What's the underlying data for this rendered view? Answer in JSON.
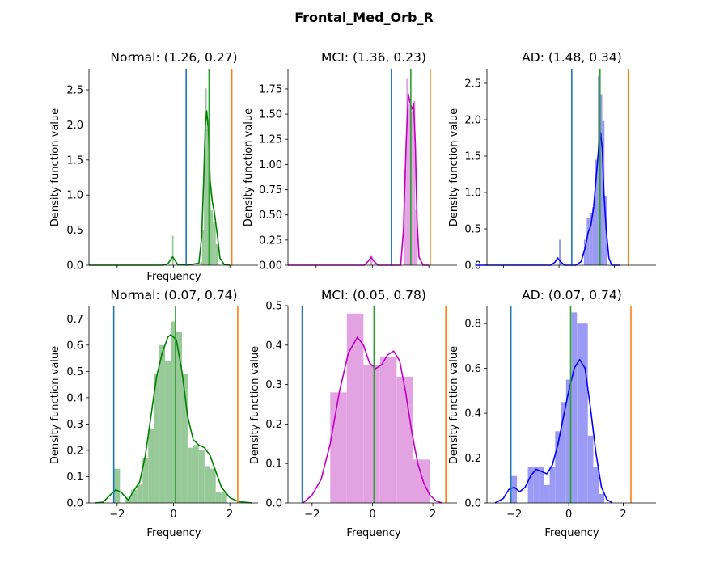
{
  "figure": {
    "title": "Frontal_Med_Orb_R"
  },
  "chart_data": [
    {
      "type": "histogram-kde",
      "title": "Normal: (1.26, 0.27)",
      "xlabel": "Frequency",
      "ylabel": "Density function value",
      "xlim": [
        -3.0,
        3.0
      ],
      "ylim": [
        0,
        2.8
      ],
      "yticks": [
        0.0,
        0.5,
        1.0,
        1.5,
        2.0,
        2.5
      ],
      "ytick_labels": [
        "0.0",
        "0.5",
        "1.0",
        "1.5",
        "2.0",
        "2.5"
      ],
      "xticks": [
        -2,
        0,
        2
      ],
      "xtick_labels": [],
      "color": "#008000",
      "fill_color": "#98c998",
      "bins": [
        [
          -0.05,
          0.0,
          0.42
        ],
        [
          0.95,
          1.02,
          0.05
        ],
        [
          1.02,
          1.08,
          0.5
        ],
        [
          1.08,
          1.12,
          1.7
        ],
        [
          1.12,
          1.18,
          2.52
        ],
        [
          1.18,
          1.24,
          1.95
        ],
        [
          1.24,
          1.32,
          1.15
        ],
        [
          1.32,
          1.4,
          0.78
        ],
        [
          1.4,
          1.5,
          0.62
        ],
        [
          1.5,
          1.6,
          0.3
        ]
      ],
      "kde": [
        [
          -3.0,
          0.0
        ],
        [
          -0.4,
          0.0
        ],
        [
          -0.2,
          0.02
        ],
        [
          -0.1,
          0.08
        ],
        [
          -0.03,
          0.12
        ],
        [
          0.05,
          0.07
        ],
        [
          0.15,
          0.01
        ],
        [
          0.5,
          0.0
        ],
        [
          0.9,
          0.03
        ],
        [
          1.0,
          0.4
        ],
        [
          1.07,
          1.2
        ],
        [
          1.13,
          2.0
        ],
        [
          1.18,
          2.2
        ],
        [
          1.24,
          1.9
        ],
        [
          1.3,
          1.2
        ],
        [
          1.38,
          0.9
        ],
        [
          1.45,
          0.75
        ],
        [
          1.55,
          0.45
        ],
        [
          1.65,
          0.1
        ],
        [
          1.8,
          0.01
        ],
        [
          2.0,
          0.0
        ]
      ],
      "vlines": [
        {
          "x": 0.45,
          "color": "#1f77b4"
        },
        {
          "x": 1.26,
          "color": "#2ca02c"
        },
        {
          "x": 2.07,
          "color": "#ff7f0e"
        }
      ]
    },
    {
      "type": "histogram-kde",
      "title": "MCI: (1.36, 0.23)",
      "xlabel": "",
      "ylabel": "Density function value",
      "xlim": [
        -3.0,
        3.0
      ],
      "ylim": [
        0,
        1.95
      ],
      "yticks": [
        0.0,
        0.25,
        0.5,
        0.75,
        1.0,
        1.25,
        1.5,
        1.75
      ],
      "ytick_labels": [
        "0.00",
        "0.25",
        "0.50",
        "0.75",
        "1.00",
        "1.25",
        "1.50",
        "1.75"
      ],
      "xticks": [
        -2,
        0,
        2
      ],
      "xtick_labels": [],
      "color": "#bf00bf",
      "fill_color": "#e3a3e3",
      "bins": [
        [
          -0.1,
          0.0,
          0.1
        ],
        [
          1.1,
          1.2,
          0.95
        ],
        [
          1.2,
          1.28,
          1.85
        ],
        [
          1.28,
          1.36,
          1.6
        ],
        [
          1.36,
          1.44,
          1.53
        ],
        [
          1.44,
          1.52,
          1.63
        ],
        [
          1.52,
          1.6,
          0.55
        ]
      ],
      "kde": [
        [
          -3.0,
          0.0
        ],
        [
          -0.3,
          0.0
        ],
        [
          -0.15,
          0.04
        ],
        [
          -0.05,
          0.08
        ],
        [
          0.05,
          0.04
        ],
        [
          0.2,
          0.0
        ],
        [
          1.0,
          0.0
        ],
        [
          1.1,
          0.35
        ],
        [
          1.2,
          1.25
        ],
        [
          1.27,
          1.7
        ],
        [
          1.32,
          1.63
        ],
        [
          1.4,
          1.55
        ],
        [
          1.46,
          1.6
        ],
        [
          1.52,
          1.2
        ],
        [
          1.58,
          0.45
        ],
        [
          1.65,
          0.08
        ],
        [
          1.8,
          0.0
        ],
        [
          2.0,
          0.0
        ]
      ],
      "vlines": [
        {
          "x": 0.67,
          "color": "#1f77b4"
        },
        {
          "x": 1.36,
          "color": "#2ca02c"
        },
        {
          "x": 2.05,
          "color": "#ff7f0e"
        }
      ]
    },
    {
      "type": "histogram-kde",
      "title": "AD: (1.48, 0.34)",
      "xlabel": "",
      "ylabel": "Density function value",
      "xlim": [
        -2.6,
        3.5
      ],
      "ylim": [
        0,
        2.7
      ],
      "yticks": [
        0.0,
        0.5,
        1.0,
        1.5,
        2.0,
        2.5
      ],
      "ytick_labels": [
        "0.0",
        "0.5",
        "1.0",
        "1.5",
        "2.0",
        "2.5"
      ],
      "xticks": [
        -2,
        0,
        2
      ],
      "xtick_labels": [],
      "color": "#0000ff",
      "fill_color": "#9b9bf5",
      "bins": [
        [
          0.0,
          0.07,
          0.35
        ],
        [
          0.9,
          1.0,
          0.35
        ],
        [
          1.0,
          1.1,
          0.65
        ],
        [
          1.1,
          1.2,
          0.72
        ],
        [
          1.2,
          1.3,
          0.8
        ],
        [
          1.3,
          1.4,
          1.45
        ],
        [
          1.4,
          1.48,
          2.6
        ],
        [
          1.48,
          1.56,
          2.35
        ],
        [
          1.56,
          1.64,
          1.98
        ],
        [
          1.64,
          1.72,
          0.95
        ]
      ],
      "kde": [
        [
          -3.0,
          0.0
        ],
        [
          -0.3,
          0.0
        ],
        [
          -0.15,
          0.04
        ],
        [
          -0.05,
          0.1
        ],
        [
          0.05,
          0.05
        ],
        [
          0.2,
          0.0
        ],
        [
          0.6,
          0.0
        ],
        [
          0.8,
          0.05
        ],
        [
          0.95,
          0.25
        ],
        [
          1.05,
          0.45
        ],
        [
          1.15,
          0.55
        ],
        [
          1.25,
          0.8
        ],
        [
          1.35,
          1.25
        ],
        [
          1.45,
          1.7
        ],
        [
          1.5,
          1.82
        ],
        [
          1.56,
          1.6
        ],
        [
          1.62,
          1.0
        ],
        [
          1.7,
          0.5
        ],
        [
          1.8,
          0.1
        ],
        [
          1.9,
          0.0
        ],
        [
          2.2,
          0.0
        ]
      ],
      "vlines": [
        {
          "x": 0.46,
          "color": "#1f77b4"
        },
        {
          "x": 1.48,
          "color": "#2ca02c"
        },
        {
          "x": 2.5,
          "color": "#ff7f0e"
        }
      ]
    },
    {
      "type": "histogram-kde",
      "title": "Normal: (0.07, 0.74)",
      "xlabel": "Frequency",
      "ylabel": "Density function value",
      "xlim": [
        -3.0,
        3.0
      ],
      "ylim": [
        0,
        0.75
      ],
      "yticks": [
        0.0,
        0.1,
        0.2,
        0.3,
        0.4,
        0.5,
        0.6,
        0.7
      ],
      "ytick_labels": [
        "0.0",
        "0.1",
        "0.2",
        "0.3",
        "0.4",
        "0.5",
        "0.6",
        "0.7"
      ],
      "xticks": [
        -2,
        0,
        2
      ],
      "xtick_labels": [
        "−2",
        "0",
        "2"
      ],
      "color": "#008000",
      "fill_color": "#98c998",
      "bins": [
        [
          -2.1,
          -1.9,
          0.13
        ],
        [
          -1.7,
          -1.5,
          0.02
        ],
        [
          -1.5,
          -1.3,
          0.05
        ],
        [
          -1.3,
          -1.1,
          0.07
        ],
        [
          -1.1,
          -0.9,
          0.17
        ],
        [
          -0.9,
          -0.7,
          0.28
        ],
        [
          -0.7,
          -0.5,
          0.49
        ],
        [
          -0.5,
          -0.3,
          0.6
        ],
        [
          -0.3,
          -0.1,
          0.54
        ],
        [
          -0.1,
          0.1,
          0.69
        ],
        [
          0.1,
          0.3,
          0.65
        ],
        [
          0.3,
          0.5,
          0.49
        ],
        [
          0.5,
          0.7,
          0.21
        ],
        [
          0.7,
          0.9,
          0.22
        ],
        [
          0.9,
          1.1,
          0.2
        ],
        [
          1.1,
          1.3,
          0.14
        ],
        [
          1.3,
          1.5,
          0.13
        ],
        [
          1.5,
          1.7,
          0.04
        ],
        [
          1.7,
          1.9,
          0.04
        ]
      ],
      "kde": [
        [
          -2.8,
          0.0
        ],
        [
          -2.5,
          0.003
        ],
        [
          -2.25,
          0.03
        ],
        [
          -2.05,
          0.05
        ],
        [
          -1.85,
          0.04
        ],
        [
          -1.6,
          0.01
        ],
        [
          -1.45,
          0.04
        ],
        [
          -1.2,
          0.08
        ],
        [
          -1.0,
          0.18
        ],
        [
          -0.8,
          0.33
        ],
        [
          -0.6,
          0.48
        ],
        [
          -0.4,
          0.57
        ],
        [
          -0.2,
          0.63
        ],
        [
          -0.1,
          0.64
        ],
        [
          0.1,
          0.62
        ],
        [
          0.3,
          0.5
        ],
        [
          0.5,
          0.33
        ],
        [
          0.7,
          0.24
        ],
        [
          0.9,
          0.22
        ],
        [
          1.1,
          0.21
        ],
        [
          1.3,
          0.18
        ],
        [
          1.5,
          0.12
        ],
        [
          1.7,
          0.06
        ],
        [
          2.0,
          0.02
        ],
        [
          2.3,
          0.005
        ],
        [
          2.8,
          0.0
        ]
      ],
      "vlines": [
        {
          "x": -2.12,
          "color": "#1f77b4"
        },
        {
          "x": 0.07,
          "color": "#2ca02c"
        },
        {
          "x": 2.28,
          "color": "#ff7f0e"
        }
      ]
    },
    {
      "type": "histogram-kde",
      "title": "MCI: (0.05, 0.78)",
      "xlabel": "Frequency",
      "ylabel": "Density function value",
      "xlim": [
        -2.8,
        2.8
      ],
      "ylim": [
        0,
        0.5
      ],
      "yticks": [
        0.0,
        0.1,
        0.2,
        0.3,
        0.4,
        0.5
      ],
      "ytick_labels": [
        "0.0",
        "0.1",
        "0.2",
        "0.3",
        "0.4",
        "0.5"
      ],
      "xticks": [
        -2,
        0,
        2
      ],
      "xtick_labels": [
        "−2",
        "0",
        "2"
      ],
      "color": "#bf00bf",
      "fill_color": "#e3a3e3",
      "bins": [
        [
          -1.4,
          -0.85,
          0.28
        ],
        [
          -0.85,
          -0.3,
          0.48
        ],
        [
          -0.3,
          0.25,
          0.35
        ],
        [
          0.25,
          0.8,
          0.37
        ],
        [
          0.8,
          1.35,
          0.32
        ],
        [
          1.35,
          1.9,
          0.11
        ]
      ],
      "kde": [
        [
          -2.3,
          0.0
        ],
        [
          -2.0,
          0.02
        ],
        [
          -1.7,
          0.06
        ],
        [
          -1.4,
          0.15
        ],
        [
          -1.1,
          0.28
        ],
        [
          -0.8,
          0.38
        ],
        [
          -0.5,
          0.42
        ],
        [
          -0.3,
          0.4
        ],
        [
          -0.1,
          0.355
        ],
        [
          0.1,
          0.34
        ],
        [
          0.3,
          0.35
        ],
        [
          0.5,
          0.375
        ],
        [
          0.7,
          0.385
        ],
        [
          0.9,
          0.36
        ],
        [
          1.1,
          0.28
        ],
        [
          1.3,
          0.18
        ],
        [
          1.5,
          0.1
        ],
        [
          1.7,
          0.05
        ],
        [
          1.9,
          0.02
        ],
        [
          2.1,
          0.005
        ],
        [
          2.3,
          0.0
        ]
      ],
      "vlines": [
        {
          "x": -2.33,
          "color": "#1f77b4"
        },
        {
          "x": 0.05,
          "color": "#2ca02c"
        },
        {
          "x": 2.43,
          "color": "#ff7f0e"
        }
      ]
    },
    {
      "type": "histogram-kde",
      "title": "AD: (0.07, 0.74)",
      "xlabel": "Frequency",
      "ylabel": "Density function value",
      "xlim": [
        -3.0,
        3.2
      ],
      "ylim": [
        0,
        0.88
      ],
      "yticks": [
        0.0,
        0.2,
        0.4,
        0.6,
        0.8
      ],
      "ytick_labels": [
        "0.0",
        "0.2",
        "0.4",
        "0.6",
        "0.8"
      ],
      "xticks": [
        -2,
        0,
        2
      ],
      "xtick_labels": [
        "−2",
        "0",
        "2"
      ],
      "color": "#0000ff",
      "fill_color": "#9b9bf5",
      "bins": [
        [
          -2.1,
          -1.9,
          0.12
        ],
        [
          -1.5,
          -1.3,
          0.16
        ],
        [
          -1.3,
          -1.1,
          0.16
        ],
        [
          -1.1,
          -0.9,
          0.16
        ],
        [
          -0.9,
          -0.7,
          0.08
        ],
        [
          -0.7,
          -0.5,
          0.16
        ],
        [
          -0.5,
          -0.3,
          0.32
        ],
        [
          -0.3,
          -0.1,
          0.45
        ],
        [
          -0.1,
          0.1,
          0.55
        ],
        [
          0.1,
          0.3,
          0.85
        ],
        [
          0.3,
          0.5,
          0.8
        ],
        [
          0.5,
          0.7,
          0.8
        ],
        [
          0.7,
          0.9,
          0.3
        ],
        [
          0.9,
          1.1,
          0.16
        ],
        [
          1.1,
          1.3,
          0.04
        ]
      ],
      "kde": [
        [
          -2.7,
          0.0
        ],
        [
          -2.4,
          0.02
        ],
        [
          -2.2,
          0.06
        ],
        [
          -2.0,
          0.07
        ],
        [
          -1.8,
          0.05
        ],
        [
          -1.6,
          0.07
        ],
        [
          -1.4,
          0.12
        ],
        [
          -1.2,
          0.15
        ],
        [
          -1.0,
          0.14
        ],
        [
          -0.8,
          0.13
        ],
        [
          -0.6,
          0.17
        ],
        [
          -0.4,
          0.26
        ],
        [
          -0.2,
          0.38
        ],
        [
          0.0,
          0.5
        ],
        [
          0.2,
          0.6
        ],
        [
          0.4,
          0.64
        ],
        [
          0.6,
          0.6
        ],
        [
          0.8,
          0.42
        ],
        [
          1.0,
          0.22
        ],
        [
          1.2,
          0.07
        ],
        [
          1.4,
          0.015
        ],
        [
          1.6,
          0.0
        ]
      ],
      "vlines": [
        {
          "x": -2.12,
          "color": "#1f77b4"
        },
        {
          "x": 0.07,
          "color": "#2ca02c"
        },
        {
          "x": 2.28,
          "color": "#ff7f0e"
        }
      ]
    }
  ]
}
